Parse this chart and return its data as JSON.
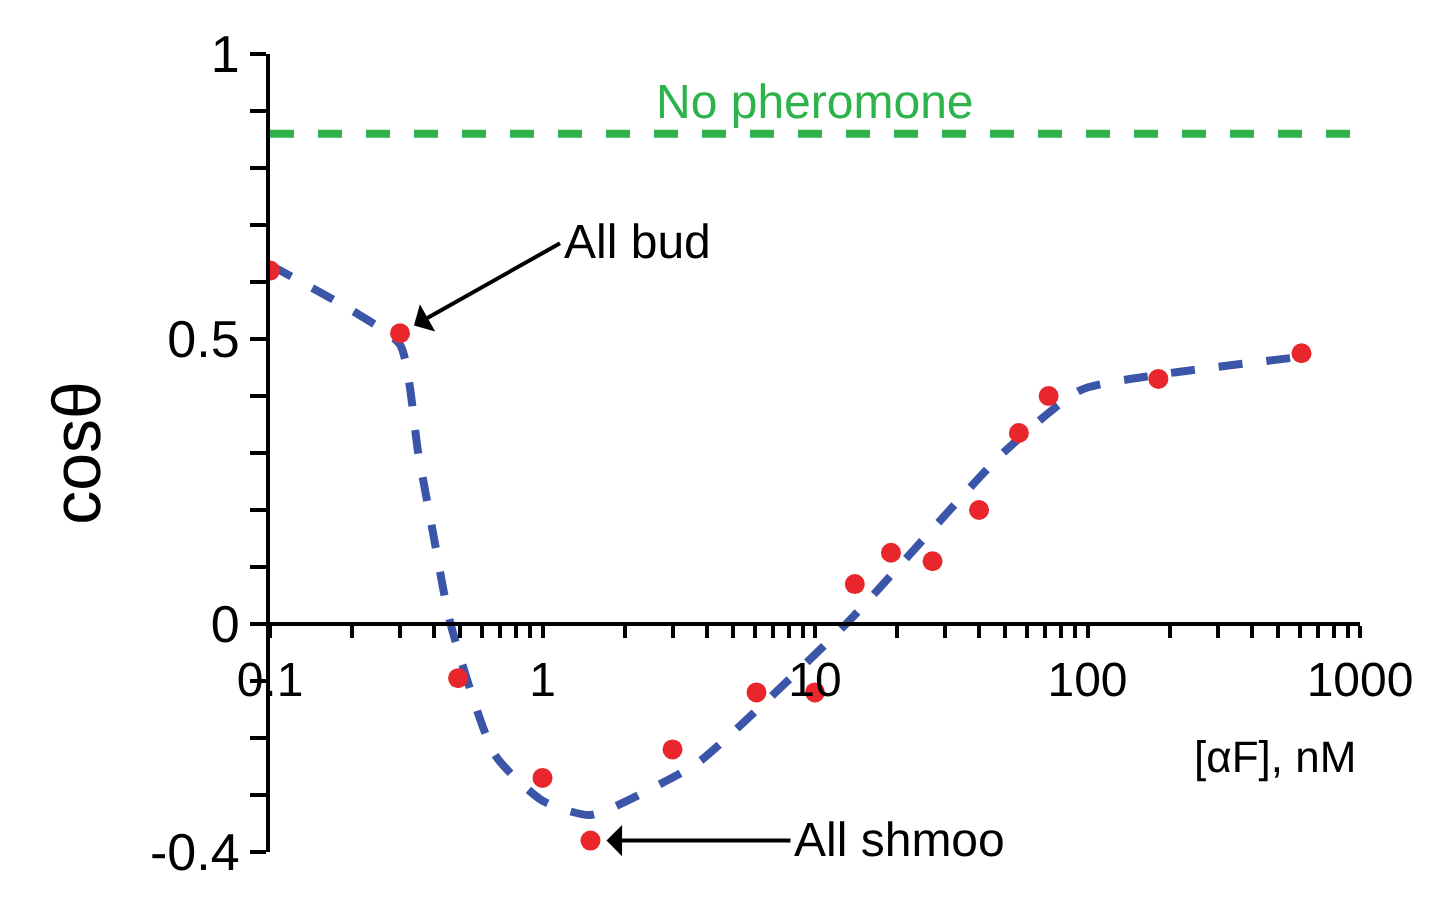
{
  "chart_data": {
    "type": "scatter",
    "xlabel": "[αF], nM",
    "ylabel": "cosθ",
    "log": "x",
    "xlim": [
      0.1,
      1000
    ],
    "ylim": [
      -0.4,
      1
    ],
    "xticks": [
      0.1,
      {
        "value": 0.2,
        "label": null
      },
      {
        "value": 0.3,
        "label": null
      },
      {
        "value": 0.4,
        "label": null
      },
      {
        "value": 0.5,
        "label": null
      },
      {
        "value": 0.6,
        "label": null
      },
      {
        "value": 0.7,
        "label": null
      },
      {
        "value": 0.8,
        "label": null
      },
      {
        "value": 0.9,
        "label": null
      },
      1,
      {
        "value": 2,
        "label": null
      },
      {
        "value": 3,
        "label": null
      },
      {
        "value": 4,
        "label": null
      },
      {
        "value": 5,
        "label": null
      },
      {
        "value": 6,
        "label": null
      },
      {
        "value": 7,
        "label": null
      },
      {
        "value": 8,
        "label": null
      },
      {
        "value": 9,
        "label": null
      },
      10,
      {
        "value": 20,
        "label": null
      },
      {
        "value": 30,
        "label": null
      },
      {
        "value": 40,
        "label": null
      },
      {
        "value": 50,
        "label": null
      },
      {
        "value": 60,
        "label": null
      },
      {
        "value": 70,
        "label": null
      },
      {
        "value": 80,
        "label": null
      },
      {
        "value": 90,
        "label": null
      },
      100,
      {
        "value": 200,
        "label": null
      },
      {
        "value": 300,
        "label": null
      },
      {
        "value": 400,
        "label": null
      },
      {
        "value": 500,
        "label": null
      },
      {
        "value": 600,
        "label": null
      },
      {
        "value": 700,
        "label": null
      },
      {
        "value": 800,
        "label": null
      },
      {
        "value": 900,
        "label": null
      },
      1000
    ],
    "yticks": [
      -0.4,
      {
        "value": -0.3,
        "label": null
      },
      {
        "value": -0.2,
        "label": null
      },
      {
        "value": -0.1,
        "label": null
      },
      0,
      {
        "value": 0.1,
        "label": null
      },
      {
        "value": 0.2,
        "label": null
      },
      {
        "value": 0.3,
        "label": null
      },
      {
        "value": 0.4,
        "label": null
      },
      0.5,
      {
        "value": 0.6,
        "label": null
      },
      {
        "value": 0.7,
        "label": null
      },
      {
        "value": 0.8,
        "label": null
      },
      {
        "value": 0.9,
        "label": null
      },
      1
    ],
    "series": [
      {
        "type": "line",
        "line_style": "dashed",
        "color": "#3b56a8",
        "x": [
          0.1,
          0.2,
          0.3,
          0.35,
          0.4,
          0.46,
          0.67,
          1,
          1.5,
          2.85,
          3.8,
          13,
          49,
          94,
          180,
          640
        ],
        "values": [
          0.63,
          0.55,
          0.49,
          0.3,
          0.15,
          0.0,
          -0.23,
          -0.31,
          -0.335,
          -0.275,
          -0.24,
          0.0,
          0.3,
          0.41,
          0.437,
          0.47
        ]
      },
      {
        "type": "scatter",
        "marker": "circle",
        "color": "#e8262b",
        "x": [
          0.1,
          0.3,
          0.49,
          1.0,
          1.5,
          3.0,
          6.1,
          10,
          14,
          19,
          27,
          40,
          56,
          72,
          182,
          610
        ],
        "values": [
          0.62,
          0.51,
          -0.095,
          -0.27,
          -0.38,
          -0.22,
          -0.12,
          -0.12,
          0.07,
          0.125,
          0.11,
          0.2,
          0.335,
          0.4,
          0.43,
          0.475
        ]
      }
    ],
    "ref_lines": [
      {
        "axis": "y",
        "value": 0.86,
        "label": "No pheromone",
        "color": "#2db34a",
        "line_style": "dashed"
      }
    ],
    "annotations": [
      {
        "text": "All bud",
        "x": 0.3,
        "y": 0.51
      },
      {
        "text": "All shmoo",
        "x": 1.5,
        "y": -0.38
      }
    ]
  }
}
